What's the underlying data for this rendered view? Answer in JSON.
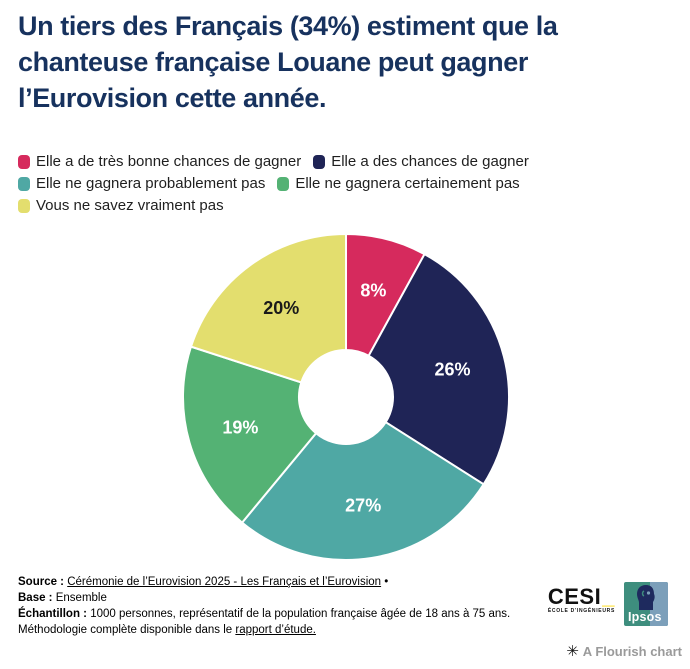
{
  "title": {
    "lines": [
      "Un tiers des Français (34%) estiment que la",
      "chanteuse française Louane peut gagner",
      "l’Eurovision cette année."
    ],
    "color": "#17325E"
  },
  "chart_data": {
    "type": "pie",
    "donut": true,
    "inner_radius_ratio": 0.29,
    "start_angle_deg": 0,
    "direction": "clockwise",
    "legend_position": "top",
    "title": "Un tiers des Français (34%) estiment que la chanteuse française Louane peut gagner l’Eurovision cette année.",
    "segments": [
      {
        "label": "Elle a de très bonne chances de gagner",
        "value": 8,
        "value_label": "8%",
        "color": "#D62A5D",
        "value_label_color": "#FFFFFF"
      },
      {
        "label": "Elle a des chances de gagner",
        "value": 26,
        "value_label": "26%",
        "color": "#1F2456",
        "value_label_color": "#FFFFFF"
      },
      {
        "label": "Elle ne gagnera probablement pas",
        "value": 27,
        "value_label": "27%",
        "color": "#4FA8A4",
        "value_label_color": "#FFFFFF"
      },
      {
        "label": "Elle ne gagnera certainement pas",
        "value": 19,
        "value_label": "19%",
        "color": "#54B274",
        "value_label_color": "#FFFFFF"
      },
      {
        "label": "Vous ne savez vraiment pas",
        "value": 20,
        "value_label": "20%",
        "color": "#E3DE6E",
        "value_label_color": "#1A1A1A"
      }
    ]
  },
  "footer": {
    "source_label": "Source :",
    "source_link": "Cérémonie de l’Eurovision 2025 - Les Français et l’Eurovision",
    "source_suffix": "•",
    "base_label": "Base :",
    "base_value": "Ensemble",
    "sample_label": "Échantillon :",
    "sample_text": "1000 personnes, représentatif de la population française âgée de 18 ans à 75 ans.",
    "method_text": "Méthodologie complète disponible dans le",
    "method_link": "rapport d’étude."
  },
  "logos": {
    "cesi_name": "CESI",
    "cesi_underscore": "_",
    "cesi_subtitle": "ÉCOLE D'INGÉNIEURS",
    "cesi_accent": "#FFD900",
    "ipsos_name": "Ipsos",
    "ipsos_teal": "#3E8E7E",
    "ipsos_blue": "#7C9FBA",
    "ipsos_navy": "#1E2A5E"
  },
  "attribution": {
    "icon": "flourish-asterisk",
    "icon_glyph": "✳",
    "text": "A Flourish chart"
  }
}
